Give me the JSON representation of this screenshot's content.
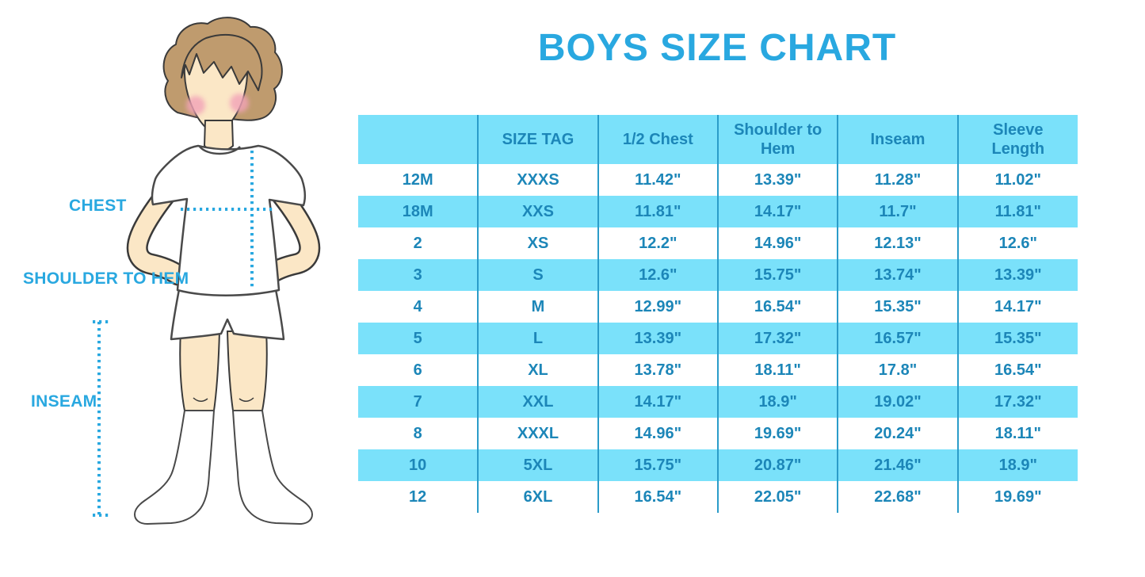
{
  "title": "BOYS SIZE CHART",
  "colors": {
    "accent_blue": "#29A8E0",
    "table_band_cyan": "#7AE1FA",
    "table_divider_blue": "#2B9CC9",
    "table_text_blue": "#1C86B8",
    "skin": "#FBE7C6",
    "hair_brown": "#BF9B6E",
    "blush_pink": "#F2A3B8"
  },
  "figure": {
    "labels": {
      "chest": "CHEST",
      "shoulder_to_hem": "SHOULDER TO HEM",
      "inseam": "INSEAM"
    }
  },
  "chart_data": {
    "type": "table",
    "title": "BOYS SIZE CHART",
    "columns": [
      "",
      "SIZE TAG",
      "1/2 Chest",
      "Shoulder to Hem",
      "Inseam",
      "Sleeve Length"
    ],
    "rows": [
      [
        "12M",
        "XXXS",
        "11.42\"",
        "13.39\"",
        "11.28\"",
        "11.02\""
      ],
      [
        "18M",
        "XXS",
        "11.81\"",
        "14.17\"",
        "11.7\"",
        "11.81\""
      ],
      [
        "2",
        "XS",
        "12.2\"",
        "14.96\"",
        "12.13\"",
        "12.6\""
      ],
      [
        "3",
        "S",
        "12.6\"",
        "15.75\"",
        "13.74\"",
        "13.39\""
      ],
      [
        "4",
        "M",
        "12.99\"",
        "16.54\"",
        "15.35\"",
        "14.17\""
      ],
      [
        "5",
        "L",
        "13.39\"",
        "17.32\"",
        "16.57\"",
        "15.35\""
      ],
      [
        "6",
        "XL",
        "13.78\"",
        "18.11\"",
        "17.8\"",
        "16.54\""
      ],
      [
        "7",
        "XXL",
        "14.17\"",
        "18.9\"",
        "19.02\"",
        "17.32\""
      ],
      [
        "8",
        "XXXL",
        "14.96\"",
        "19.69\"",
        "20.24\"",
        "18.11\""
      ],
      [
        "10",
        "5XL",
        "15.75\"",
        "20.87\"",
        "21.46\"",
        "18.9\""
      ],
      [
        "12",
        "6XL",
        "16.54\"",
        "22.05\"",
        "22.68\"",
        "19.69\""
      ]
    ],
    "layout_hints": {
      "striped_rows": "header and even data rows cyan, odd data rows white",
      "legend_position": "none",
      "grid": "vertical column dividers only"
    }
  }
}
